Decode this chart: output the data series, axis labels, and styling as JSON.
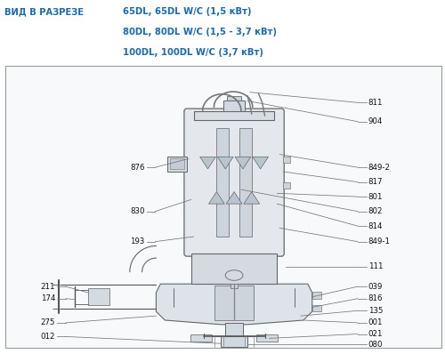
{
  "title_left": "ВИД В РАЗРЕЗЕ",
  "title_right_lines": [
    "65DL, 65DL W/C (1,5 кВт)",
    "80DL, 80DL W/C (1,5 - 3,7 кВт)",
    "100DL, 100DL W/C (3,7 кВт)"
  ],
  "title_color": "#1a6bb5",
  "title_fontsize": 7.2,
  "bg_color": "#ffffff",
  "diagram_bg": "#f8f9fb",
  "border_color": "#888888",
  "draw_color": "#555555",
  "text_color": "#111111",
  "label_fontsize": 6.2,
  "leader_color": "#777777"
}
